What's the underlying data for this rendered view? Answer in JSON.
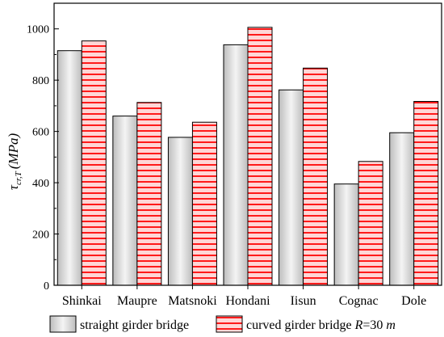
{
  "chart_data": {
    "type": "bar",
    "categories": [
      "Shinkai",
      "Maupre",
      "Matsnoki",
      "Hondani",
      "Iisun",
      "Cognac",
      "Dole"
    ],
    "series": [
      {
        "name": "straight girder bridge",
        "values": [
          915,
          660,
          577,
          938,
          762,
          395,
          595
        ]
      },
      {
        "name": "curved girder bridge R=30 m",
        "values": [
          953,
          713,
          636,
          1006,
          847,
          483,
          717
        ]
      }
    ],
    "ylabel": "τcr,T (MPa)",
    "ylim": [
      0,
      1100
    ],
    "yticks": [
      0,
      200,
      400,
      600,
      800,
      1000
    ],
    "grid": false,
    "legend_position": "bottom",
    "colors": {
      "straight": "#d8d8d8",
      "curved_fill": "#ffd2d2",
      "curved_stripe": "#ff1a1a",
      "axis": "#000000"
    }
  },
  "legend": {
    "straight_label": "straight girder bridge",
    "curved_label_prefix": "curved girder bridge ",
    "curved_label_var": "R",
    "curved_label_mid": "=30 ",
    "curved_label_unit": "m"
  },
  "yaxis": {
    "tau": "τ",
    "sub": "cr,T",
    "unit": "(MPa)"
  }
}
